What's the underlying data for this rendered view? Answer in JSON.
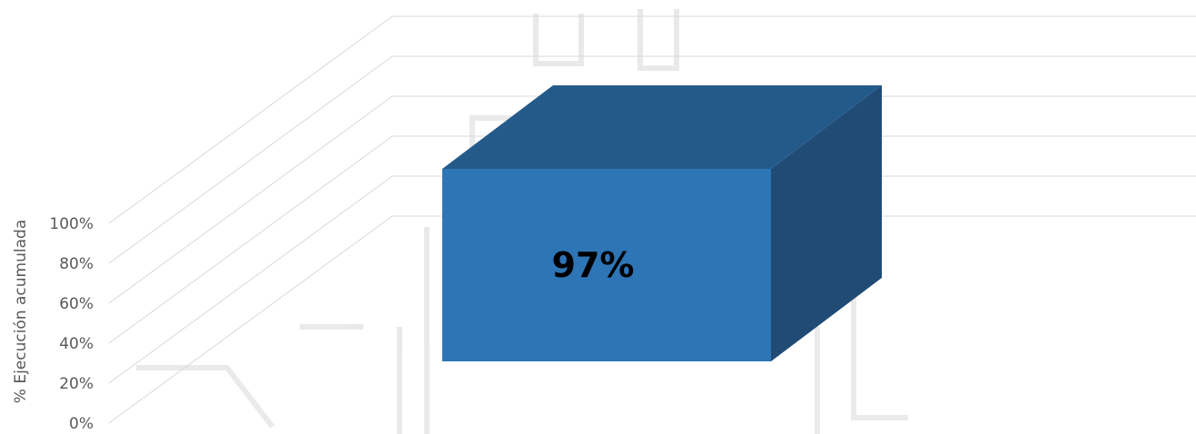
{
  "chart_data": {
    "type": "bar",
    "categories": [
      ""
    ],
    "series": [
      {
        "values": [
          97
        ]
      }
    ],
    "data_labels": [
      "97%"
    ],
    "ylabel": "% Ejecución acumulada",
    "yticks": [
      "0%",
      "20%",
      "40%",
      "60%",
      "80%",
      "100%"
    ],
    "ylim": [
      0,
      100
    ],
    "grid": true,
    "legend": "none",
    "style": "3d-column",
    "colors": {
      "front": "#2E75B6",
      "top": "#245A8A",
      "side": "#1F4B75",
      "grid": "#D9D9D9",
      "text": "#595959"
    }
  }
}
